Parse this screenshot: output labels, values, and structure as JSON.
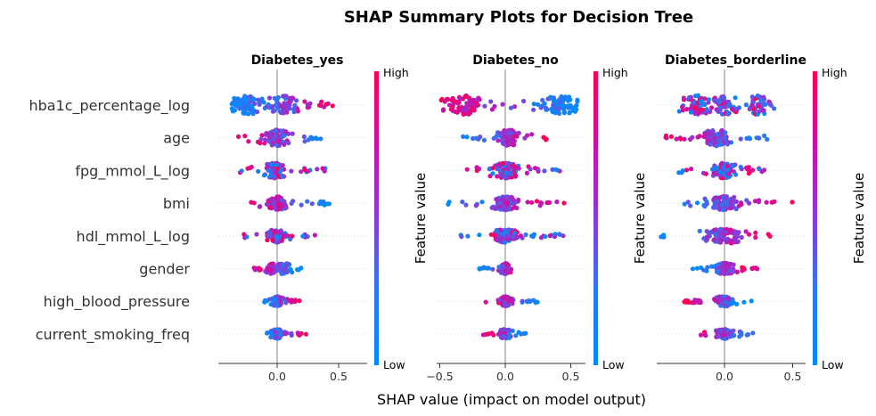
{
  "chart_data": {
    "type": "scatter",
    "title": "SHAP Summary Plots for Decision Tree",
    "xlabel": "SHAP value (impact on model output)",
    "colorbar": {
      "label": "Feature value",
      "high": "High",
      "low": "Low",
      "low_color": "#008bfb",
      "high_color": "#ff0052"
    },
    "features": [
      "hba1c_percentage_log",
      "age",
      "fpg_mmol_L_log",
      "bmi",
      "hdl_mmol_L_log",
      "gender",
      "high_blood_pressure",
      "current_smoking_freq"
    ],
    "panels": [
      {
        "title": "Diabetes_yes",
        "xlim": [
          -0.48,
          0.72
        ],
        "xticks": [
          0.0,
          0.5
        ],
        "xtick_labels": [
          "0.0",
          "0.5"
        ],
        "series": [
          {
            "feature": "hba1c_percentage_log",
            "spread": [
              -0.4,
              0.62
            ],
            "density_peaks": [
              -0.25,
              0.05
            ],
            "low_side": "negative",
            "width": 0.4
          },
          {
            "feature": "age",
            "spread": [
              -0.4,
              0.45
            ],
            "density_peaks": [
              0.0
            ],
            "low_side": "positive",
            "width": 0.34
          },
          {
            "feature": "fpg_mmol_L_log",
            "spread": [
              -0.32,
              0.42
            ],
            "density_peaks": [
              -0.02
            ],
            "low_side": "mixed",
            "width": 0.32
          },
          {
            "feature": "bmi",
            "spread": [
              -0.25,
              0.45
            ],
            "density_peaks": [
              0.0
            ],
            "low_side": "positive",
            "width": 0.28
          },
          {
            "feature": "hdl_mmol_L_log",
            "spread": [
              -0.3,
              0.35
            ],
            "density_peaks": [
              0.0
            ],
            "low_side": "mixed",
            "width": 0.28
          },
          {
            "feature": "gender",
            "spread": [
              -0.2,
              0.2
            ],
            "density_peaks": [
              -0.03,
              0.05
            ],
            "low_side": "positive",
            "width": 0.24
          },
          {
            "feature": "high_blood_pressure",
            "spread": [
              -0.12,
              0.2
            ],
            "density_peaks": [
              0.0
            ],
            "low_side": "negative",
            "width": 0.2
          },
          {
            "feature": "current_smoking_freq",
            "spread": [
              -0.1,
              0.24
            ],
            "density_peaks": [
              0.0
            ],
            "low_side": "negative",
            "width": 0.2
          }
        ]
      },
      {
        "title": "Diabetes_no",
        "xlim": [
          -0.62,
          0.62
        ],
        "xticks": [
          -0.5,
          0.0,
          0.5
        ],
        "xtick_labels": [
          "−0.5",
          "0.0",
          "0.5"
        ],
        "series": [
          {
            "feature": "hba1c_percentage_log",
            "spread": [
              -0.5,
              0.55
            ],
            "density_peaks": [
              -0.3,
              0.42
            ],
            "low_side": "positive",
            "width": 0.4
          },
          {
            "feature": "age",
            "spread": [
              -0.35,
              0.32
            ],
            "density_peaks": [
              0.03
            ],
            "low_side": "negative",
            "width": 0.34
          },
          {
            "feature": "fpg_mmol_L_log",
            "spread": [
              -0.38,
              0.42
            ],
            "density_peaks": [
              0.0
            ],
            "low_side": "mixed",
            "width": 0.32
          },
          {
            "feature": "bmi",
            "spread": [
              -0.45,
              0.45
            ],
            "density_peaks": [
              0.0
            ],
            "low_side": "negative",
            "width": 0.28
          },
          {
            "feature": "hdl_mmol_L_log",
            "spread": [
              -0.35,
              0.45
            ],
            "density_peaks": [
              0.0
            ],
            "low_side": "mixed",
            "width": 0.28
          },
          {
            "feature": "gender",
            "spread": [
              -0.2,
              0.12
            ],
            "density_peaks": [
              0.0
            ],
            "low_side": "negative",
            "width": 0.22
          },
          {
            "feature": "high_blood_pressure",
            "spread": [
              -0.15,
              0.25
            ],
            "density_peaks": [
              0.0
            ],
            "low_side": "positive",
            "width": 0.2
          },
          {
            "feature": "current_smoking_freq",
            "spread": [
              -0.2,
              0.18
            ],
            "density_peaks": [
              0.0
            ],
            "low_side": "positive",
            "width": 0.2
          }
        ]
      },
      {
        "title": "Diabetes_borderline",
        "xlim": [
          -0.48,
          0.58
        ],
        "xticks": [
          0.0,
          0.5
        ],
        "xtick_labels": [
          "0.0",
          "0.5"
        ],
        "series": [
          {
            "feature": "hba1c_percentage_log",
            "spread": [
              -0.35,
              0.4
            ],
            "density_peaks": [
              -0.2,
              0.0,
              0.25
            ],
            "low_side": "mixed",
            "width": 0.4
          },
          {
            "feature": "age",
            "spread": [
              -0.45,
              0.32
            ],
            "density_peaks": [
              -0.05
            ],
            "low_side": "positive",
            "width": 0.34
          },
          {
            "feature": "fpg_mmol_L_log",
            "spread": [
              -0.35,
              0.32
            ],
            "density_peaks": [
              0.0
            ],
            "low_side": "mixed",
            "width": 0.32
          },
          {
            "feature": "bmi",
            "spread": [
              -0.4,
              0.52
            ],
            "density_peaks": [
              0.0
            ],
            "low_side": "negative",
            "width": 0.3
          },
          {
            "feature": "hdl_mmol_L_log",
            "spread": [
              -0.48,
              0.4
            ],
            "density_peaks": [
              -0.05,
              0.05
            ],
            "low_side": "negative",
            "width": 0.3
          },
          {
            "feature": "gender",
            "spread": [
              -0.25,
              0.25
            ],
            "density_peaks": [
              0.0
            ],
            "low_side": "negative",
            "width": 0.24
          },
          {
            "feature": "high_blood_pressure",
            "spread": [
              -0.3,
              0.2
            ],
            "density_peaks": [
              0.0
            ],
            "low_side": "positive",
            "width": 0.22
          },
          {
            "feature": "current_smoking_freq",
            "spread": [
              -0.25,
              0.25
            ],
            "density_peaks": [
              0.0
            ],
            "low_side": "positive",
            "width": 0.2
          }
        ]
      }
    ]
  }
}
